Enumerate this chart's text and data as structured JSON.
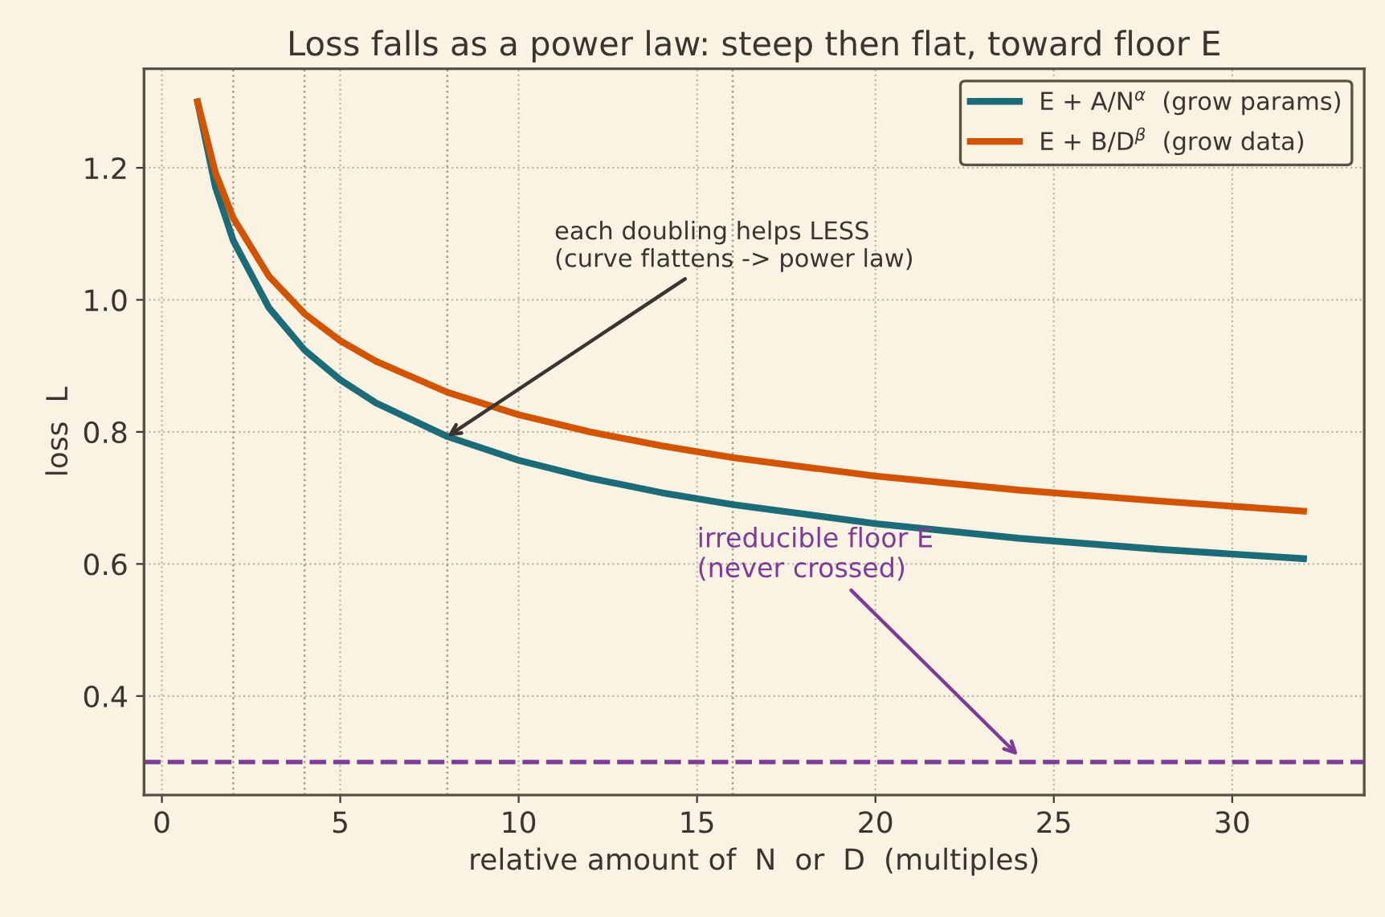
{
  "chart_data": {
    "type": "line",
    "title": "Loss falls as a power law: steep then flat, toward floor E",
    "xlabel": "relative amount of  N  or  D  (multiples)",
    "ylabel": "loss  L",
    "x": [
      1,
      1.5,
      2,
      3,
      4,
      5,
      6,
      8,
      10,
      12,
      14,
      16,
      20,
      24,
      28,
      32
    ],
    "series": [
      {
        "name": "E + A/N$^{α}$  (grow params)",
        "color": "#1b6b78",
        "values": [
          1.3,
          1.171,
          1.09,
          0.988,
          0.924,
          0.879,
          0.844,
          0.793,
          0.757,
          0.73,
          0.708,
          0.69,
          0.661,
          0.639,
          0.622,
          0.608
        ]
      },
      {
        "name": "E + B/D$^{β}$  (grow data)",
        "color": "#d35400",
        "values": [
          1.3,
          1.193,
          1.124,
          1.036,
          0.979,
          0.938,
          0.907,
          0.86,
          0.826,
          0.8,
          0.779,
          0.761,
          0.733,
          0.712,
          0.695,
          0.68
        ]
      }
    ],
    "xlim": [
      -0.5,
      33.7
    ],
    "ylim": [
      0.25,
      1.35
    ],
    "xticks": [
      0,
      5,
      10,
      15,
      20,
      25,
      30
    ],
    "yticks": [
      0.4,
      0.6,
      0.8,
      {
        "value": 1,
        "label": "1.0"
      },
      1.2
    ],
    "ref_lines": [
      {
        "axis": "y",
        "value": 0.3,
        "color": "#7d3c98",
        "line_style": "dashed"
      },
      {
        "axis": "x",
        "value": 2,
        "color": "#a09a90",
        "line_style": "dotted"
      },
      {
        "axis": "x",
        "value": 4,
        "color": "#a09a90",
        "line_style": "dotted"
      },
      {
        "axis": "x",
        "value": 8,
        "color": "#a09a90",
        "line_style": "dotted"
      },
      {
        "axis": "x",
        "value": 16,
        "color": "#a09a90",
        "line_style": "dotted"
      }
    ],
    "annotations": [
      {
        "text": "each doubling helps LESS\n(curve flattens -> power law)",
        "x": 8,
        "y": 0.793
      },
      {
        "text": "irreducible floor E\n(never crossed)",
        "x": 24,
        "y": 0.31
      }
    ],
    "grid": true,
    "legend": "top right",
    "line_style": "solid",
    "marker": "none"
  }
}
